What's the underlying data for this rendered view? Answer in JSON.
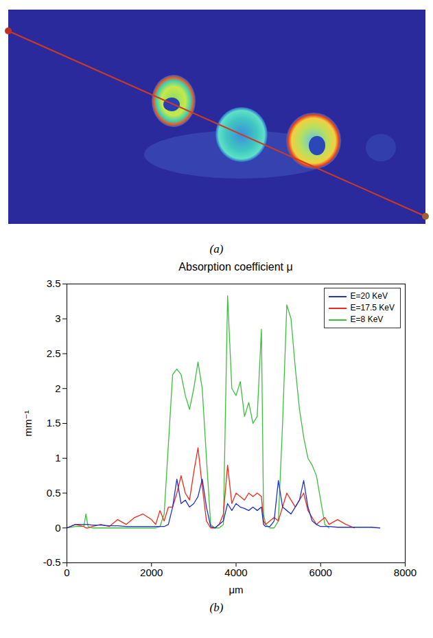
{
  "panel_labels": [
    "(a)",
    "(b)"
  ],
  "chart_data": {
    "type": "line",
    "title": "Absorption coefficient μ",
    "x_label": "μm",
    "y_label": "mm⁻¹",
    "xlim": [
      0,
      8000
    ],
    "xticks": [
      0,
      2000,
      4000,
      6000,
      8000
    ],
    "ylim": [
      -0.5,
      3.5
    ],
    "yticks": [
      -0.5,
      0,
      0.5,
      1,
      1.5,
      2,
      2.5,
      3,
      3.5
    ],
    "grid": false,
    "legend": "upper right",
    "x": [
      0,
      200,
      400,
      450,
      500,
      600,
      800,
      1000,
      1200,
      1400,
      1600,
      1800,
      2000,
      2100,
      2200,
      2300,
      2400,
      2500,
      2600,
      2700,
      2800,
      2900,
      3000,
      3100,
      3200,
      3300,
      3400,
      3500,
      3600,
      3700,
      3800,
      3900,
      4000,
      4100,
      4200,
      4300,
      4400,
      4500,
      4600,
      4650,
      4700,
      4800,
      4900,
      5000,
      5100,
      5200,
      5300,
      5400,
      5500,
      5600,
      5700,
      5800,
      5900,
      6000,
      6100,
      6200,
      6400,
      6600,
      6800,
      7000,
      7200,
      7400
    ],
    "series": [
      {
        "name": "E=20 KeV",
        "color": "#1f2fd0",
        "values": [
          0,
          0.05,
          0.05,
          0.05,
          0.05,
          0.04,
          0.04,
          0.03,
          0.03,
          0.02,
          0.02,
          0.02,
          0.02,
          0.02,
          0.02,
          0.02,
          0.05,
          0.3,
          0.7,
          0.35,
          0.4,
          0.3,
          0.35,
          0.45,
          0.7,
          0.3,
          0.02,
          0,
          0.05,
          0.1,
          0.35,
          0.25,
          0.35,
          0.3,
          0.28,
          0.25,
          0.3,
          0.25,
          0.3,
          0.05,
          0.02,
          0.02,
          0.1,
          0.68,
          0.3,
          0.25,
          0.2,
          0.3,
          0.4,
          0.68,
          0.3,
          0.1,
          0.05,
          0.02,
          0.02,
          0.02,
          0.01,
          0.01,
          0.01,
          0.01,
          0.01,
          0
        ]
      },
      {
        "name": "E=17.5 KeV",
        "color": "#ee2a1a",
        "values": [
          0,
          0.05,
          0.02,
          0,
          0,
          0.02,
          0.05,
          0.02,
          0.12,
          0.05,
          0.15,
          0.2,
          0.12,
          0.05,
          0.25,
          0.1,
          0.3,
          0.3,
          0.5,
          0.75,
          0.5,
          0.4,
          0.8,
          1.15,
          0.6,
          0.1,
          0,
          0,
          0.05,
          0.2,
          0.9,
          0.35,
          0.5,
          0.45,
          0.4,
          0.5,
          0.45,
          0.5,
          0.45,
          0.1,
          0.05,
          0.1,
          0.15,
          0.1,
          0.3,
          0.5,
          0.4,
          0.3,
          0.4,
          0.5,
          0.25,
          0.15,
          0.05,
          0.1,
          0.15,
          0.05,
          0.12,
          0.05,
          0,
          null,
          null,
          null
        ]
      },
      {
        "name": "E=8 KeV",
        "color": "#3cc03c",
        "values": [
          0,
          0.02,
          0.02,
          0.2,
          0.02,
          0,
          0,
          0,
          0,
          0,
          0,
          0,
          0,
          0,
          0.02,
          0.2,
          1.2,
          2.2,
          2.28,
          2.2,
          1.9,
          1.7,
          2.0,
          2.38,
          2.0,
          1.0,
          0.05,
          0,
          0,
          0.05,
          3.33,
          2.0,
          1.9,
          2.1,
          1.6,
          1.8,
          1.5,
          1.6,
          2.85,
          0.2,
          0.05,
          0,
          0,
          0.1,
          1.5,
          3.2,
          3.0,
          2.3,
          1.7,
          1.3,
          1.0,
          0.9,
          0.75,
          0.4,
          0.05,
          0,
          null,
          null,
          null,
          null,
          null,
          null
        ]
      }
    ]
  }
}
